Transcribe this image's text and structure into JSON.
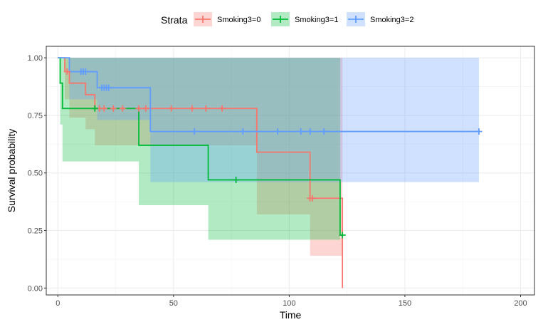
{
  "chart_data": {
    "type": "line",
    "subtype": "kaplan-meier-step-with-confidence-bands",
    "xlabel": "Time",
    "ylabel": "Survival probability",
    "xlim": [
      -5,
      206
    ],
    "ylim": [
      -0.03,
      1.05
    ],
    "x_ticks": [
      0,
      50,
      100,
      150,
      200
    ],
    "x_tick_labels": [
      "0",
      "50",
      "100",
      "150",
      "200"
    ],
    "y_ticks": [
      0,
      0.25,
      0.5,
      0.75,
      1
    ],
    "y_tick_labels": [
      "0.00",
      "0.25",
      "0.50",
      "0.75",
      "1.00"
    ],
    "grid": true,
    "legend": {
      "title": "Strata",
      "position": "top"
    },
    "series": [
      {
        "name": "Smoking3=0",
        "color": "#f8766d",
        "steps": [
          [
            0,
            1.0
          ],
          [
            3,
            0.94
          ],
          [
            5,
            0.89
          ],
          [
            12,
            0.84
          ],
          [
            16,
            0.78
          ],
          [
            86,
            0.59
          ],
          [
            109,
            0.39
          ],
          [
            123,
            0.0
          ]
        ],
        "end_x": 123,
        "ci": [
          [
            0,
            1.0,
            1.0
          ],
          [
            3,
            0.82,
            1.0
          ],
          [
            5,
            0.74,
            1.0
          ],
          [
            12,
            0.69,
            1.0
          ],
          [
            16,
            0.62,
            1.0
          ],
          [
            86,
            0.32,
            1.0
          ],
          [
            109,
            0.14,
            1.0
          ],
          [
            123,
            0.14,
            1.0
          ]
        ],
        "censor_times": [
          4,
          18,
          20,
          24,
          28,
          35,
          38,
          49,
          58,
          64,
          71,
          109,
          110
        ]
      },
      {
        "name": "Smoking3=1",
        "color": "#00ba38",
        "steps": [
          [
            0,
            1.0
          ],
          [
            1,
            0.89
          ],
          [
            2,
            0.78
          ],
          [
            35,
            0.62
          ],
          [
            65,
            0.47
          ],
          [
            122,
            0.23
          ]
        ],
        "end_x": 123,
        "ci": [
          [
            0,
            1.0,
            1.0
          ],
          [
            1,
            0.71,
            1.0
          ],
          [
            2,
            0.55,
            1.0
          ],
          [
            35,
            0.36,
            1.0
          ],
          [
            65,
            0.21,
            1.0
          ],
          [
            122,
            0.21,
            1.0
          ]
        ],
        "censor_times": [
          16,
          77,
          123
        ]
      },
      {
        "name": "Smoking3=2",
        "color": "#619cff",
        "steps": [
          [
            0,
            1.0
          ],
          [
            5,
            0.94
          ],
          [
            17,
            0.87
          ],
          [
            40,
            0.68
          ]
        ],
        "end_x": 182,
        "ci": [
          [
            0,
            1.0,
            1.0
          ],
          [
            5,
            0.82,
            1.0
          ],
          [
            17,
            0.73,
            1.0
          ],
          [
            40,
            0.46,
            1.0
          ],
          [
            182,
            0.46,
            1.0
          ]
        ],
        "censor_times": [
          10,
          11,
          12,
          19,
          20,
          21,
          22,
          59,
          80,
          95,
          105,
          109,
          115,
          182
        ]
      }
    ]
  }
}
